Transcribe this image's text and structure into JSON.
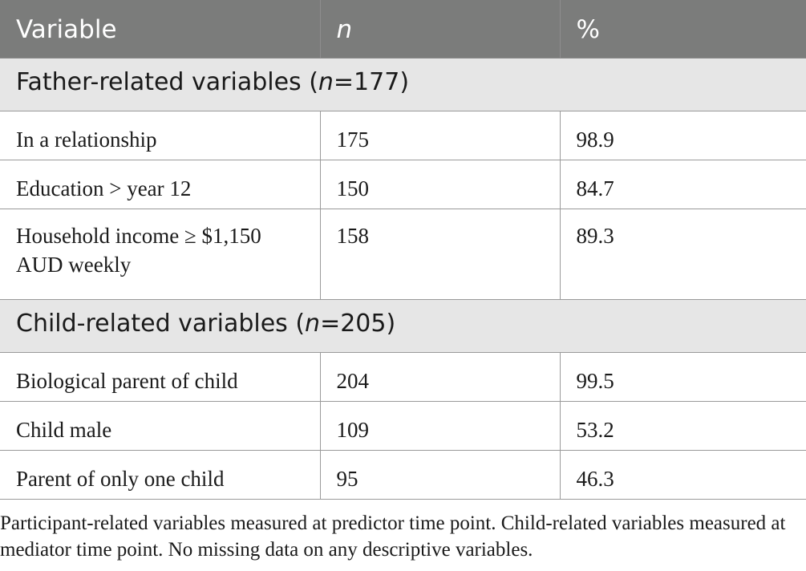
{
  "header": {
    "col1": "Variable",
    "col2": "n",
    "col3": "%"
  },
  "sections": [
    {
      "label_prefix": "Father-related variables (",
      "label_n": "n",
      "label_suffix": "=177)",
      "rows": [
        {
          "variable": "In a relationship",
          "n": "175",
          "pct": "98.9"
        },
        {
          "variable": "Education > year 12",
          "n": "150",
          "pct": "84.7"
        },
        {
          "variable": "Household income ≥ $1,150 AUD weekly",
          "n": "158",
          "pct": "89.3"
        }
      ]
    },
    {
      "label_prefix": "Child-related variables (",
      "label_n": "n",
      "label_suffix": "=205)",
      "rows": [
        {
          "variable": "Biological parent of child",
          "n": "204",
          "pct": "99.5"
        },
        {
          "variable": "Child male",
          "n": "109",
          "pct": "53.2"
        },
        {
          "variable": "Parent of only one child",
          "n": "95",
          "pct": "46.3"
        }
      ]
    }
  ],
  "note": "Participant-related variables measured at predictor time point. Child-related variables measured at mediator time point. No missing data on any descriptive variables."
}
